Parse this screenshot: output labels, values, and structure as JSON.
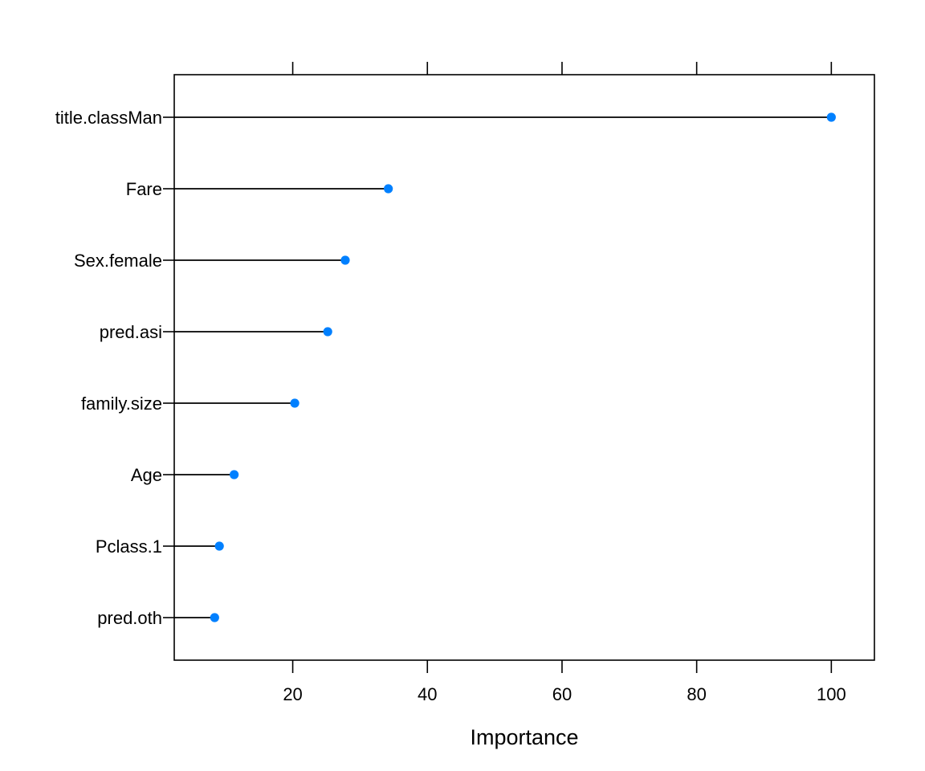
{
  "chart_data": {
    "type": "dotplot",
    "categories": [
      "title.classMan",
      "Fare",
      "Sex.female",
      "pred.asi",
      "family.size",
      "Age",
      "Pclass.1",
      "pred.oth"
    ],
    "values": [
      100,
      34.2,
      27.8,
      25.2,
      20.3,
      11.3,
      9.1,
      8.4
    ],
    "xlabel": "Importance",
    "ylabel": "",
    "xlim": [
      2.4,
      106.4
    ],
    "x_ticks": [
      20,
      40,
      60,
      80,
      100
    ],
    "x_tick_labels": [
      "20",
      "40",
      "60",
      "80",
      "100"
    ],
    "grid": false,
    "colors": {
      "point": "#0080FF",
      "line": "#000000",
      "frame": "#000000"
    }
  }
}
